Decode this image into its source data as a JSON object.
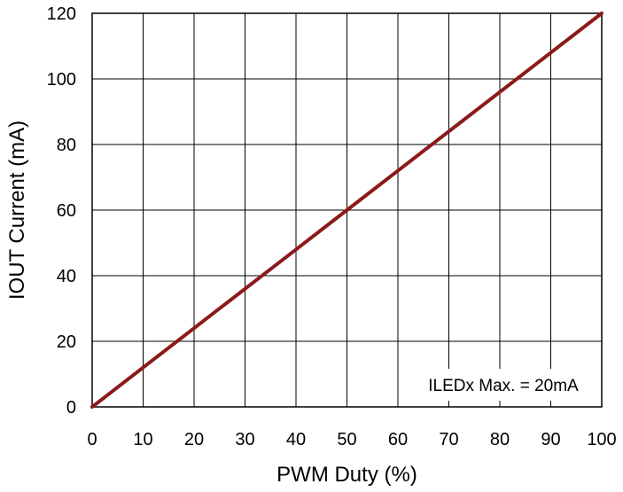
{
  "chart_data": {
    "type": "line",
    "xlabel": "PWM Duty (%)",
    "ylabel": "IOUT Current (mA)",
    "xlim": [
      0,
      100
    ],
    "ylim": [
      0,
      120
    ],
    "x_ticks": [
      0,
      10,
      20,
      30,
      40,
      50,
      60,
      70,
      80,
      90,
      100
    ],
    "y_ticks": [
      0,
      20,
      40,
      60,
      80,
      100,
      120
    ],
    "grid": true,
    "annotation": "ILEDx Max. = 20mA",
    "series": [
      {
        "color": "#8b1a1a",
        "x": [
          0,
          10,
          20,
          30,
          40,
          50,
          60,
          70,
          80,
          90,
          100
        ],
        "y": [
          0,
          12,
          24,
          36,
          48,
          60,
          72,
          84,
          96,
          108,
          120
        ]
      }
    ]
  }
}
